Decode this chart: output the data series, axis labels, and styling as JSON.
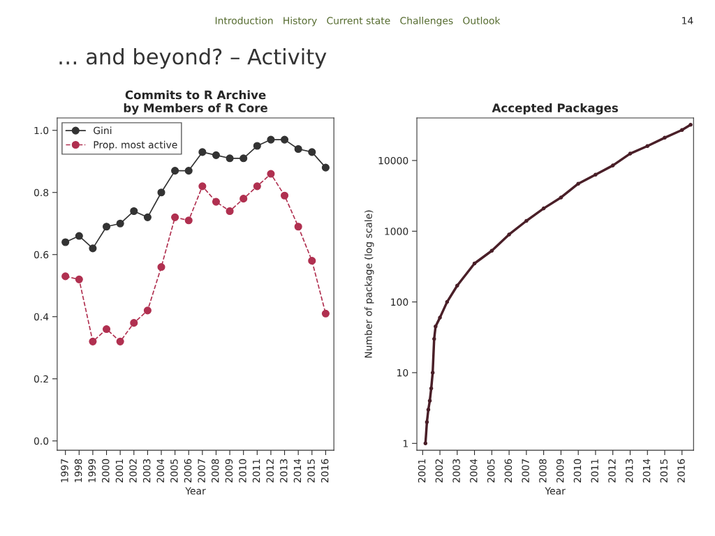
{
  "chart_data": [
    {
      "type": "line",
      "title": "Commits to R Archive\nby Members of R Core",
      "xlabel": "Year",
      "annotations": [
        "… and beyond? – Activity",
        "Introduction   History   Current state   Challenges   Outlook",
        "14"
      ],
      "categories": [
        "1997",
        "1998",
        "1999",
        "2000",
        "2001",
        "2002",
        "2003",
        "2004",
        "2005",
        "2006",
        "2007",
        "2008",
        "2009",
        "2010",
        "2011",
        "2012",
        "2013",
        "2014",
        "2015",
        "2016"
      ],
      "series": [
        {
          "name": "Gini",
          "color": "#333333",
          "line_style": "solid",
          "values": [
            0.64,
            0.66,
            0.62,
            0.69,
            0.7,
            0.74,
            0.72,
            0.8,
            0.87,
            0.87,
            0.93,
            0.92,
            0.91,
            0.91,
            0.95,
            0.97,
            0.97,
            0.94,
            0.93,
            0.88
          ]
        },
        {
          "name": "Prop. most active",
          "color": "#b03050",
          "line_style": "dashed",
          "values": [
            0.53,
            0.52,
            0.32,
            0.36,
            0.32,
            0.38,
            0.42,
            0.56,
            0.72,
            0.71,
            0.82,
            0.77,
            0.74,
            0.78,
            0.82,
            0.86,
            0.79,
            0.69,
            0.58,
            0.41
          ]
        }
      ],
      "marker": "circle",
      "ylim": [
        -0.03,
        1.04
      ],
      "yticks": [
        {
          "value": 0,
          "label": "0.0"
        },
        {
          "value": 0.2,
          "label": "0.2"
        },
        {
          "value": 0.4,
          "label": "0.4"
        },
        {
          "value": 0.6,
          "label": "0.6"
        },
        {
          "value": 0.8,
          "label": "0.8"
        },
        {
          "value": 1,
          "label": "1.0"
        }
      ],
      "legend": "top left",
      "grid": false
    },
    {
      "type": "line",
      "title": "Accepted Packages",
      "xlabel": "Year",
      "ylabel": "Number of package (log scale)",
      "series": [
        {
          "color": "#4a1f28",
          "x": [
            "2001-03",
            "2001-04",
            "2001-05",
            "2001-06",
            "2001-07",
            "2001-08",
            "2001-09",
            "2001-10",
            "2002-01",
            "2002-06",
            "2003-01",
            "2004-01",
            "2005-01",
            "2006-01",
            "2007-01",
            "2008-01",
            "2009-01",
            "2010-01",
            "2011-01",
            "2012-01",
            "2013-01",
            "2014-01",
            "2015-01",
            "2016-01",
            "2016-07"
          ],
          "values": [
            1,
            2,
            3,
            4,
            6,
            10,
            30,
            45,
            60,
            100,
            170,
            350,
            530,
            900,
            1400,
            2100,
            3000,
            4700,
            6300,
            8500,
            12500,
            16000,
            21000,
            27000,
            32000
          ]
        }
      ],
      "marker": "circle",
      "log": "y",
      "xlim": [
        "2000-09",
        "2016-09"
      ],
      "xticks": [
        {
          "value": "2001",
          "label": "2001"
        },
        {
          "value": "2002",
          "label": "2002"
        },
        {
          "value": "2003",
          "label": "2003"
        },
        {
          "value": "2004",
          "label": "2004"
        },
        {
          "value": "2005",
          "label": "2005"
        },
        {
          "value": "2006",
          "label": "2006"
        },
        {
          "value": "2007",
          "label": "2007"
        },
        {
          "value": "2008",
          "label": "2008"
        },
        {
          "value": "2009",
          "label": "2009"
        },
        {
          "value": "2010",
          "label": "2010"
        },
        {
          "value": "2011",
          "label": "2011"
        },
        {
          "value": "2012",
          "label": "2012"
        },
        {
          "value": "2013",
          "label": "2013"
        },
        {
          "value": "2014",
          "label": "2014"
        },
        {
          "value": "2015",
          "label": "2015"
        },
        {
          "value": "2016",
          "label": "2016"
        }
      ],
      "ylim": [
        0.8,
        40000
      ],
      "yticks": [
        1,
        10,
        100,
        1000,
        10000
      ],
      "grid": false
    }
  ]
}
